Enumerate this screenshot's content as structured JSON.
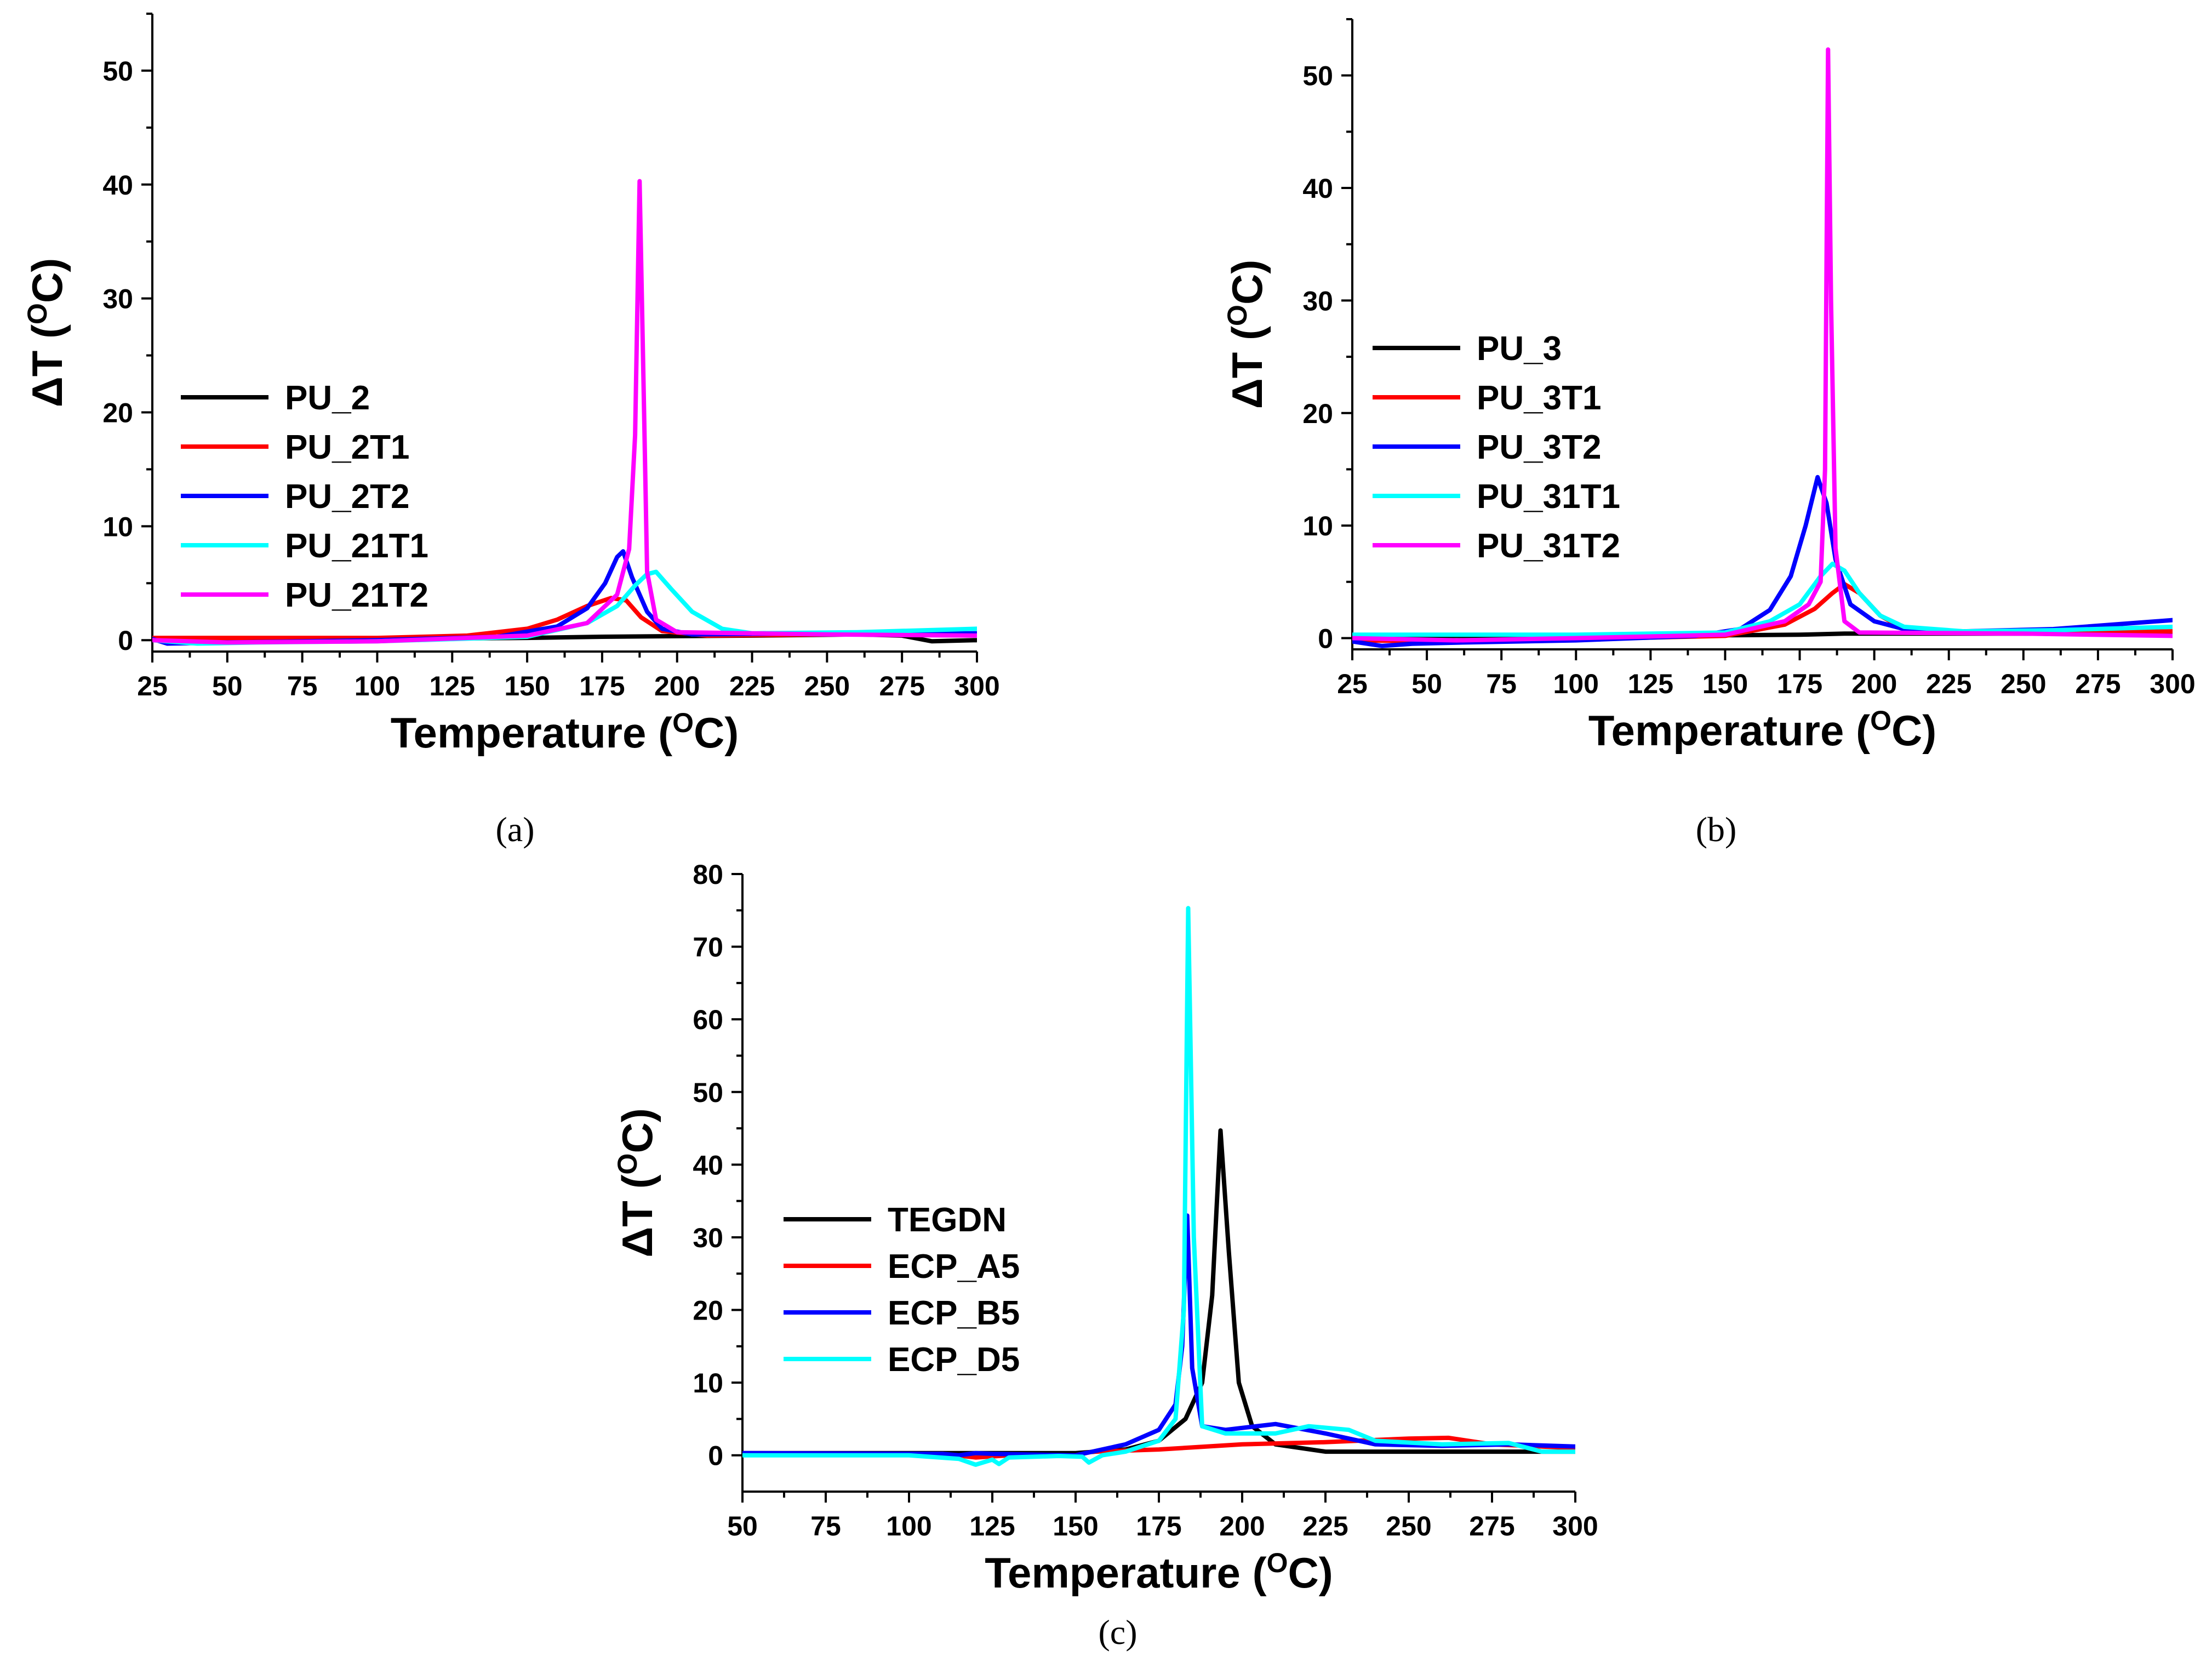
{
  "chart_data": [
    {
      "id": "a",
      "type": "line",
      "caption": "(a)",
      "xlabel": "Temperature (",
      "xlabel_sup": "O",
      "xlabel_end": "C)",
      "ylabel": "ΔT (",
      "ylabel_sup": "O",
      "ylabel_end": "C)",
      "xlim": [
        25,
        300
      ],
      "ylim": [
        -1,
        55
      ],
      "xticks": [
        25,
        50,
        75,
        100,
        125,
        150,
        175,
        200,
        225,
        250,
        275,
        300
      ],
      "yticks": [
        0,
        10,
        20,
        30,
        40,
        50
      ],
      "yminor": 5,
      "legend_position": "center-left",
      "series": [
        {
          "name": "PU_2",
          "color": "#000000",
          "points": [
            [
              25,
              0
            ],
            [
              100,
              0.1
            ],
            [
              150,
              0.2
            ],
            [
              175,
              0.3
            ],
            [
              200,
              0.35
            ],
            [
              225,
              0.4
            ],
            [
              260,
              0.5
            ],
            [
              275,
              0.4
            ],
            [
              285,
              -0.1
            ],
            [
              300,
              0
            ]
          ]
        },
        {
          "name": "PU_2T1",
          "color": "#ff0000",
          "points": [
            [
              25,
              0.2
            ],
            [
              100,
              0.2
            ],
            [
              130,
              0.4
            ],
            [
              150,
              1
            ],
            [
              160,
              1.8
            ],
            [
              170,
              3
            ],
            [
              178,
              3.7
            ],
            [
              183,
              3.5
            ],
            [
              188,
              2
            ],
            [
              195,
              0.8
            ],
            [
              210,
              0.4
            ],
            [
              250,
              0.5
            ],
            [
              300,
              0.5
            ]
          ]
        },
        {
          "name": "PU_2T2",
          "color": "#0000ff",
          "points": [
            [
              25,
              0.1
            ],
            [
              30,
              -0.3
            ],
            [
              50,
              -0.2
            ],
            [
              100,
              0
            ],
            [
              140,
              0.3
            ],
            [
              160,
              1.2
            ],
            [
              170,
              2.8
            ],
            [
              176,
              5
            ],
            [
              180,
              7.3
            ],
            [
              182,
              7.8
            ],
            [
              185,
              5.5
            ],
            [
              190,
              2.5
            ],
            [
              195,
              1
            ],
            [
              205,
              0.5
            ],
            [
              250,
              0.6
            ],
            [
              300,
              0.6
            ]
          ]
        },
        {
          "name": "PU_21T1",
          "color": "#00ffff",
          "points": [
            [
              25,
              0
            ],
            [
              40,
              -0.3
            ],
            [
              60,
              -0.2
            ],
            [
              100,
              -0.1
            ],
            [
              150,
              0.3
            ],
            [
              170,
              1.5
            ],
            [
              180,
              3
            ],
            [
              186,
              4.8
            ],
            [
              190,
              5.8
            ],
            [
              193,
              6
            ],
            [
              198,
              4.5
            ],
            [
              205,
              2.5
            ],
            [
              215,
              1
            ],
            [
              225,
              0.6
            ],
            [
              260,
              0.7
            ],
            [
              300,
              1
            ]
          ]
        },
        {
          "name": "PU_21T2",
          "color": "#ff00ff",
          "points": [
            [
              25,
              0
            ],
            [
              50,
              -0.2
            ],
            [
              100,
              -0.1
            ],
            [
              150,
              0.4
            ],
            [
              170,
              1.5
            ],
            [
              180,
              4
            ],
            [
              184,
              8
            ],
            [
              186,
              18
            ],
            [
              187.5,
              40.3
            ],
            [
              189,
              20
            ],
            [
              190,
              6
            ],
            [
              193,
              1.8
            ],
            [
              200,
              0.7
            ],
            [
              250,
              0.5
            ],
            [
              300,
              0.4
            ]
          ]
        }
      ]
    },
    {
      "id": "b",
      "type": "line",
      "caption": "(b)",
      "xlabel": "Temperature (",
      "xlabel_sup": "O",
      "xlabel_end": "C)",
      "ylabel": "ΔT (",
      "ylabel_sup": "O",
      "ylabel_end": "C)",
      "xlim": [
        25,
        300
      ],
      "ylim": [
        -1,
        55
      ],
      "xticks": [
        25,
        50,
        75,
        100,
        125,
        150,
        175,
        200,
        225,
        250,
        275,
        300
      ],
      "yticks": [
        0,
        10,
        20,
        30,
        40,
        50
      ],
      "yminor": 5,
      "legend_position": "center-left",
      "series": [
        {
          "name": "PU_3",
          "color": "#000000",
          "points": [
            [
              25,
              0.2
            ],
            [
              100,
              0.2
            ],
            [
              150,
              0.25
            ],
            [
              175,
              0.3
            ],
            [
              190,
              0.4
            ],
            [
              210,
              0.4
            ],
            [
              250,
              0.4
            ],
            [
              300,
              0.3
            ]
          ]
        },
        {
          "name": "PU_3T1",
          "color": "#ff0000",
          "points": [
            [
              25,
              -0.2
            ],
            [
              60,
              -0.3
            ],
            [
              100,
              -0.1
            ],
            [
              150,
              0.2
            ],
            [
              170,
              1.2
            ],
            [
              180,
              2.6
            ],
            [
              186,
              4
            ],
            [
              190,
              4.8
            ],
            [
              195,
              4
            ],
            [
              202,
              2
            ],
            [
              210,
              0.8
            ],
            [
              225,
              0.6
            ],
            [
              260,
              0.5
            ],
            [
              300,
              0.6
            ]
          ]
        },
        {
          "name": "PU_3T2",
          "color": "#0000ff",
          "points": [
            [
              25,
              -0.3
            ],
            [
              35,
              -0.7
            ],
            [
              45,
              -0.5
            ],
            [
              60,
              -0.4
            ],
            [
              100,
              -0.2
            ],
            [
              140,
              0.2
            ],
            [
              155,
              0.8
            ],
            [
              165,
              2.5
            ],
            [
              172,
              5.5
            ],
            [
              177,
              10
            ],
            [
              181,
              14.3
            ],
            [
              184,
              12
            ],
            [
              187,
              7
            ],
            [
              192,
              3
            ],
            [
              200,
              1.5
            ],
            [
              210,
              0.8
            ],
            [
              230,
              0.6
            ],
            [
              260,
              0.8
            ],
            [
              300,
              1.6
            ]
          ]
        },
        {
          "name": "PU_31T1",
          "color": "#00ffff",
          "points": [
            [
              25,
              0.3
            ],
            [
              100,
              0.3
            ],
            [
              150,
              0.5
            ],
            [
              165,
              1.5
            ],
            [
              175,
              3
            ],
            [
              182,
              5.5
            ],
            [
              186,
              6.6
            ],
            [
              190,
              6
            ],
            [
              195,
              4
            ],
            [
              202,
              2
            ],
            [
              210,
              1
            ],
            [
              230,
              0.6
            ],
            [
              260,
              0.7
            ],
            [
              300,
              1
            ]
          ]
        },
        {
          "name": "PU_31T2",
          "color": "#ff00ff",
          "points": [
            [
              25,
              0
            ],
            [
              60,
              -0.2
            ],
            [
              100,
              0
            ],
            [
              150,
              0.3
            ],
            [
              170,
              1.5
            ],
            [
              178,
              3
            ],
            [
              182,
              5
            ],
            [
              183.5,
              15
            ],
            [
              184.5,
              52.3
            ],
            [
              185.5,
              30
            ],
            [
              187,
              8
            ],
            [
              190,
              1.5
            ],
            [
              195,
              0.5
            ],
            [
              250,
              0.4
            ],
            [
              300,
              0.2
            ]
          ]
        }
      ]
    },
    {
      "id": "c",
      "type": "line",
      "caption": "(c)",
      "xlabel": "Temperature (",
      "xlabel_sup": "O",
      "xlabel_end": "C)",
      "ylabel": "ΔT (",
      "ylabel_sup": "O",
      "ylabel_end": "C)",
      "xlim": [
        50,
        300
      ],
      "ylim": [
        -5,
        80
      ],
      "xticks": [
        50,
        75,
        100,
        125,
        150,
        175,
        200,
        225,
        250,
        275,
        300
      ],
      "yticks": [
        0,
        10,
        20,
        30,
        40,
        50,
        60,
        70,
        80
      ],
      "yminor": 5,
      "legend_position": "center-left",
      "series": [
        {
          "name": "TEGDN",
          "color": "#000000",
          "points": [
            [
              50,
              0.3
            ],
            [
              100,
              0.3
            ],
            [
              150,
              0.3
            ],
            [
              165,
              0.8
            ],
            [
              175,
              2
            ],
            [
              183,
              5
            ],
            [
              188,
              10
            ],
            [
              191,
              22
            ],
            [
              193.5,
              44.7
            ],
            [
              196,
              28
            ],
            [
              199,
              10
            ],
            [
              203,
              4
            ],
            [
              210,
              1.5
            ],
            [
              225,
              0.5
            ],
            [
              300,
              0.5
            ]
          ]
        },
        {
          "name": "ECP_A5",
          "color": "#ff0000",
          "points": [
            [
              50,
              0.2
            ],
            [
              110,
              0.2
            ],
            [
              120,
              -0.3
            ],
            [
              130,
              0
            ],
            [
              150,
              0
            ],
            [
              155,
              0.5
            ],
            [
              175,
              0.8
            ],
            [
              200,
              1.5
            ],
            [
              225,
              1.8
            ],
            [
              250,
              2.3
            ],
            [
              262,
              2.4
            ],
            [
              275,
              1.5
            ],
            [
              300,
              1
            ]
          ]
        },
        {
          "name": "ECP_B5",
          "color": "#0000ff",
          "points": [
            [
              50,
              0.3
            ],
            [
              110,
              0.2
            ],
            [
              115,
              0
            ],
            [
              120,
              0.3
            ],
            [
              125,
              0.2
            ],
            [
              150,
              0
            ],
            [
              155,
              0.5
            ],
            [
              165,
              1.5
            ],
            [
              175,
              3.5
            ],
            [
              180,
              7
            ],
            [
              182,
              15
            ],
            [
              183.5,
              33
            ],
            [
              185,
              12
            ],
            [
              188,
              4
            ],
            [
              195,
              3.5
            ],
            [
              210,
              4.3
            ],
            [
              225,
              3
            ],
            [
              240,
              1.5
            ],
            [
              260,
              1.3
            ],
            [
              280,
              1.5
            ],
            [
              300,
              1.2
            ]
          ]
        },
        {
          "name": "ECP_D5",
          "color": "#00ffff",
          "points": [
            [
              50,
              0
            ],
            [
              100,
              0
            ],
            [
              115,
              -0.5
            ],
            [
              120,
              -1.3
            ],
            [
              125,
              -0.6
            ],
            [
              127,
              -1.2
            ],
            [
              130,
              -0.3
            ],
            [
              145,
              -0.1
            ],
            [
              152,
              -0.2
            ],
            [
              154,
              -1
            ],
            [
              158,
              0
            ],
            [
              165,
              0.5
            ],
            [
              175,
              2
            ],
            [
              180,
              5
            ],
            [
              182.5,
              20
            ],
            [
              183.8,
              75.3
            ],
            [
              185.5,
              30
            ],
            [
              188,
              4
            ],
            [
              195,
              3
            ],
            [
              210,
              3
            ],
            [
              220,
              4
            ],
            [
              232,
              3.5
            ],
            [
              240,
              2
            ],
            [
              260,
              1.5
            ],
            [
              280,
              1.7
            ],
            [
              290,
              0.5
            ],
            [
              300,
              0.5
            ]
          ]
        }
      ]
    }
  ]
}
